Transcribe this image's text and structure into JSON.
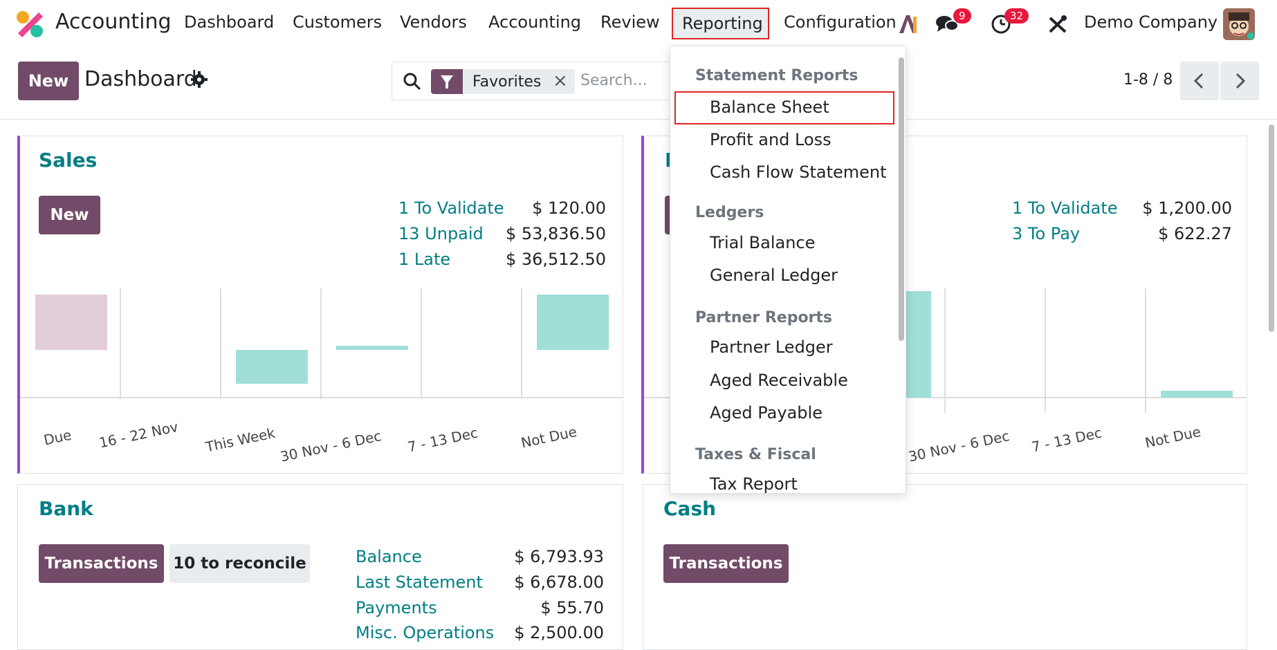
{
  "app": {
    "title": "Accounting"
  },
  "nav": {
    "items": [
      "Dashboard",
      "Customers",
      "Vendors",
      "Accounting",
      "Review"
    ],
    "reporting": "Reporting",
    "configuration": "Configuration",
    "messages_badge": "9",
    "activities_badge": "32",
    "company": "Demo Company"
  },
  "control": {
    "new_label": "New",
    "title": "Dashboard",
    "filter_chip": "Favorites",
    "search_placeholder": "Search...",
    "pager": "1-8 / 8"
  },
  "sales": {
    "title": "Sales",
    "new_label": "New",
    "stats": [
      {
        "label": "1 To Validate",
        "value": "$ 120.00"
      },
      {
        "label": "13 Unpaid",
        "value": "$ 53,836.50"
      },
      {
        "label": "1 Late",
        "value": "$ 36,512.50"
      }
    ],
    "xlabels": [
      "Due",
      "16 - 22 Nov",
      "This Week",
      "30 Nov - 6 Dec",
      "7 - 13 Dec",
      "Not Due"
    ]
  },
  "purchases": {
    "title_initial": "P",
    "stats": [
      {
        "label": "1 To Validate",
        "value": "$ 1,200.00"
      },
      {
        "label": "3 To Pay",
        "value": "$ 622.27"
      }
    ],
    "xlabels": [
      "30 Nov - 6 Dec",
      "7 - 13 Dec",
      "Not Due"
    ]
  },
  "bank": {
    "title": "Bank",
    "transactions_label": "Transactions",
    "reconcile_label": "10 to reconcile",
    "stats": [
      {
        "label": "Balance",
        "value": "$ 6,793.93"
      },
      {
        "label": "Last Statement",
        "value": "$ 6,678.00"
      },
      {
        "label": "Payments",
        "value": "$ 55.70"
      },
      {
        "label": "Misc. Operations",
        "value": "$ 2,500.00"
      }
    ]
  },
  "cash": {
    "title": "Cash",
    "transactions_label": "Transactions"
  },
  "dropdown": {
    "sections": [
      {
        "title": "Statement Reports",
        "items": [
          "Balance Sheet",
          "Profit and Loss",
          "Cash Flow Statement"
        ]
      },
      {
        "title": "Ledgers",
        "items": [
          "Trial Balance",
          "General Ledger"
        ]
      },
      {
        "title": "Partner Reports",
        "items": [
          "Partner Ledger",
          "Aged Receivable",
          "Aged Payable"
        ]
      },
      {
        "title": "Taxes & Fiscal",
        "items": [
          "Tax Report"
        ]
      }
    ]
  },
  "colors": {
    "primary": "#714b67",
    "teal": "#017e84",
    "bar_teal": "#a0dfd7",
    "bar_pink": "#e2cdd9",
    "highlight": "#e02424"
  }
}
